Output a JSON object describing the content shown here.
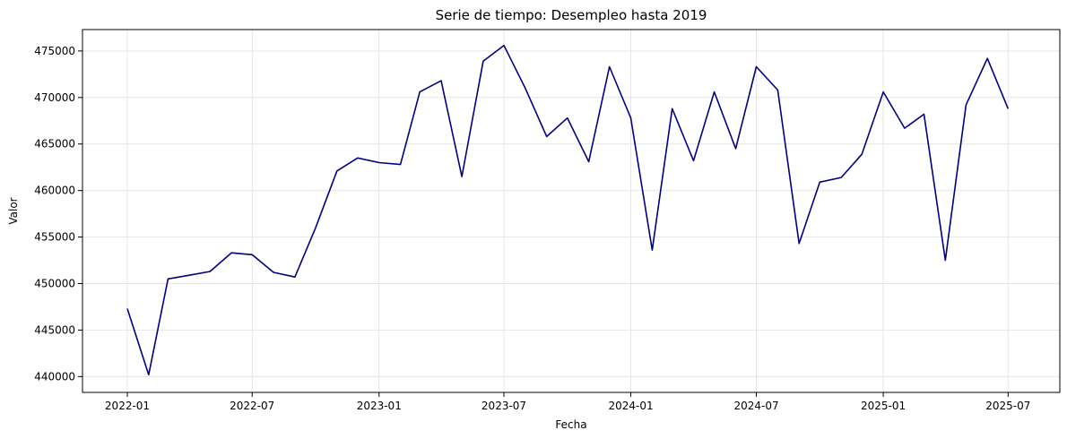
{
  "chart_data": {
    "type": "line",
    "title": "Serie de tiempo: Desempleo hasta 2019",
    "xlabel": "Fecha",
    "ylabel": "Valor",
    "x_tick_labels": [
      "2022-01",
      "2022-07",
      "2023-01",
      "2023-07",
      "2024-01",
      "2024-07",
      "2025-01",
      "2025-07"
    ],
    "y_ticks": [
      440000,
      445000,
      450000,
      455000,
      460000,
      465000,
      470000,
      475000
    ],
    "y_tick_labels": [
      "440000",
      "445000",
      "450000",
      "455000",
      "460000",
      "465000",
      "470000",
      "475000"
    ],
    "ylim": [
      438300,
      477300
    ],
    "xlim": [
      "2021-10-28",
      "2025-09-14"
    ],
    "grid": true,
    "line_color": "#000080",
    "series": [
      {
        "x": [
          "2022-01-01",
          "2022-02-01",
          "2022-03-01",
          "2022-04-01",
          "2022-05-01",
          "2022-06-01",
          "2022-07-01",
          "2022-08-01",
          "2022-09-01",
          "2022-10-01",
          "2022-11-01",
          "2022-12-01",
          "2023-01-01",
          "2023-02-01",
          "2023-03-01",
          "2023-04-01",
          "2023-05-01",
          "2023-06-01",
          "2023-07-01",
          "2023-08-01",
          "2023-09-01",
          "2023-10-01",
          "2023-11-01",
          "2023-12-01",
          "2024-01-01",
          "2024-02-01",
          "2024-03-01",
          "2024-04-01",
          "2024-05-01",
          "2024-06-01",
          "2024-07-01",
          "2024-08-01",
          "2024-09-01",
          "2024-10-01",
          "2024-11-01",
          "2024-12-01",
          "2025-01-01",
          "2025-02-01",
          "2025-03-01",
          "2025-04-01",
          "2025-05-01",
          "2025-06-01",
          "2025-07-01"
        ],
        "values": [
          447300,
          440200,
          450500,
          450900,
          451300,
          453300,
          453100,
          451200,
          450700,
          456000,
          462100,
          463500,
          463000,
          462800,
          470600,
          471800,
          461500,
          473900,
          475600,
          471000,
          465800,
          467800,
          463100,
          473300,
          467800,
          453600,
          468800,
          463200,
          470600,
          464500,
          473300,
          470800,
          454300,
          460900,
          461400,
          463900,
          470600,
          466700,
          468200,
          452500,
          469200,
          474200,
          468800
        ]
      }
    ]
  }
}
